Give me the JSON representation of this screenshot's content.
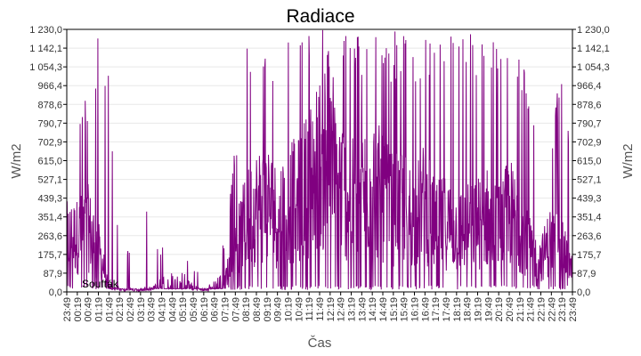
{
  "chart_data": {
    "type": "line",
    "title": "Radiace",
    "xlabel": "Čas",
    "ylabel": "W/m2",
    "ylabel_right": "W/m2",
    "ylim": [
      0,
      1230
    ],
    "grid": true,
    "legend": {
      "entries": [
        "Soufták"
      ],
      "position": "bottom-left inside"
    },
    "series_color": "#800080",
    "y_ticks": [
      "0,0",
      "87,9",
      "175,7",
      "263,6",
      "351,4",
      "439,3",
      "527,1",
      "615,0",
      "702,9",
      "790,7",
      "878,6",
      "966,4",
      "1 054,3",
      "1 142,1",
      "1 230,0"
    ],
    "y_tick_values": [
      0,
      87.9,
      175.7,
      263.6,
      351.4,
      439.3,
      527.1,
      615.0,
      702.9,
      790.7,
      878.6,
      966.4,
      1054.3,
      1142.1,
      1230.0
    ],
    "x_ticks": [
      "23:49",
      "00:19",
      "00:49",
      "01:19",
      "01:49",
      "02:19",
      "02:49",
      "03:19",
      "03:49",
      "04:19",
      "04:49",
      "05:19",
      "05:49",
      "06:19",
      "06:49",
      "07:19",
      "07:49",
      "08:19",
      "08:49",
      "09:19",
      "09:49",
      "10:19",
      "10:49",
      "11:19",
      "11:49",
      "12:19",
      "12:49",
      "13:19",
      "13:49",
      "14:19",
      "14:49",
      "15:19",
      "15:49",
      "16:19",
      "16:49",
      "17:19",
      "17:49",
      "18:19",
      "18:49",
      "19:19",
      "19:49",
      "20:19",
      "20:49",
      "21:19",
      "21:49",
      "22:19",
      "22:49",
      "23:19",
      "23:49"
    ],
    "series": [
      {
        "name": "Soufták",
        "envelope_by_tick": {
          "x": [
            "23:49",
            "00:19",
            "00:49",
            "01:19",
            "01:49",
            "02:19",
            "02:49",
            "03:19",
            "03:49",
            "04:19",
            "04:49",
            "05:19",
            "05:49",
            "06:19",
            "06:49",
            "07:19",
            "07:49",
            "08:19",
            "08:49",
            "09:19",
            "09:49",
            "10:19",
            "10:49",
            "11:19",
            "11:49",
            "12:19",
            "12:49",
            "13:19",
            "13:49",
            "14:19",
            "14:49",
            "15:19",
            "15:49",
            "16:19",
            "16:49",
            "17:19",
            "17:49",
            "18:19",
            "18:49",
            "19:19",
            "19:49",
            "20:19",
            "20:49",
            "21:19",
            "21:49",
            "22:19",
            "22:49",
            "23:19",
            "23:49"
          ],
          "typical": [
            250,
            260,
            300,
            200,
            30,
            10,
            10,
            10,
            10,
            40,
            60,
            60,
            20,
            10,
            30,
            60,
            200,
            330,
            400,
            420,
            350,
            420,
            430,
            520,
            600,
            560,
            500,
            420,
            450,
            520,
            430,
            380,
            400,
            350,
            420,
            300,
            330,
            280,
            300,
            320,
            350,
            300,
            380,
            300,
            200,
            150,
            250,
            200,
            100
          ],
          "peak": [
            615,
            840,
            930,
            1230,
            1020,
            220,
            210,
            615,
            220,
            210,
            200,
            230,
            120,
            80,
            230,
            220,
            700,
            1230,
            1230,
            1230,
            1230,
            1230,
            1230,
            1230,
            1230,
            1230,
            1230,
            1230,
            1230,
            1230,
            1230,
            1230,
            1230,
            1230,
            1230,
            1230,
            1230,
            1230,
            1230,
            1230,
            1230,
            1230,
            1230,
            1230,
            900,
            700,
            615,
            1230,
            615
          ]
        }
      }
    ]
  }
}
